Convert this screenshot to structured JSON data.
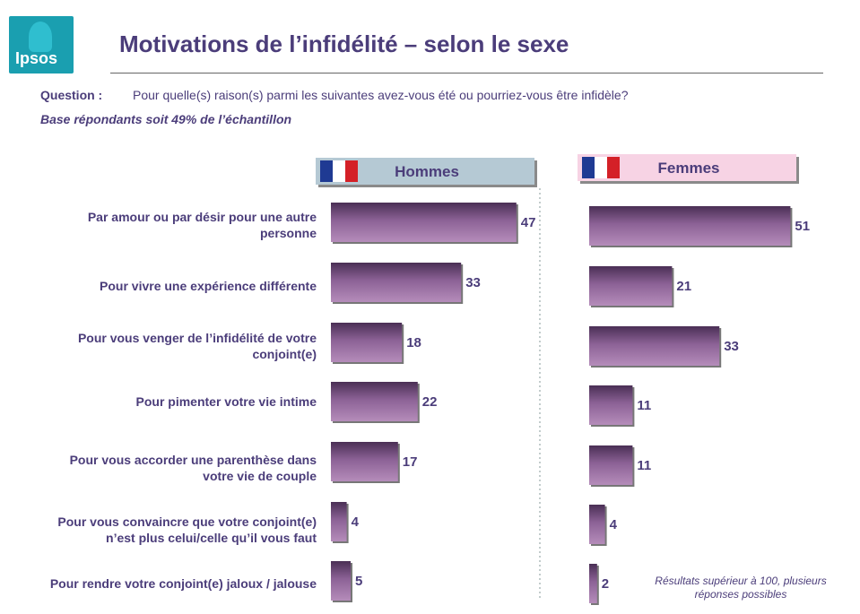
{
  "logo": {
    "text": "Ipsos"
  },
  "title": "Motivations de l’infidélité – selon le sexe",
  "question": {
    "label": "Question :",
    "text": "Pour quelle(s) raison(s) parmi les suivantes avez-vous été ou pourriez-vous être infidèle?"
  },
  "base": "Base répondants soit 49% de l’échantillon",
  "note": "Résultats supérieur à 100, plusieurs réponses possibles",
  "colors": {
    "bar_dark": "#4a2f55",
    "bar_light": "#a77bac",
    "header_men": "#b5c9d4",
    "header_women": "#f7d3e4",
    "text": "#4b3d7a"
  },
  "chart_data": {
    "type": "bar",
    "orientation": "horizontal",
    "categories": [
      "Par amour ou par désir pour une autre personne",
      "Pour vivre une expérience différente",
      "Pour vous venger de l’infidélité de votre conjoint(e)",
      "Pour pimenter votre vie intime",
      "Pour vous accorder une parenthèse dans votre vie de couple",
      "Pour vous convaincre que votre conjoint(e) n’est plus celui/celle qu’il vous faut",
      "Pour rendre votre conjoint(e) jaloux / jalouse"
    ],
    "category_lines": [
      [
        "Par amour ou par désir pour une autre",
        "personne"
      ],
      [
        "Pour vivre une expérience différente"
      ],
      [
        "Pour vous venger de l’infidélité de votre",
        "conjoint(e)"
      ],
      [
        "Pour pimenter votre vie intime"
      ],
      [
        "Pour vous accorder une parenthèse dans",
        "votre vie de couple"
      ],
      [
        "Pour vous convaincre que votre conjoint(e)",
        "n’est plus celui/celle qu’il vous faut"
      ],
      [
        "Pour rendre votre conjoint(e) jaloux / jalouse"
      ]
    ],
    "series": [
      {
        "name": "Hommes",
        "values": [
          47,
          33,
          18,
          22,
          17,
          4,
          5
        ]
      },
      {
        "name": "Femmes",
        "values": [
          51,
          21,
          33,
          11,
          11,
          4,
          2
        ]
      }
    ],
    "grid": false
  }
}
